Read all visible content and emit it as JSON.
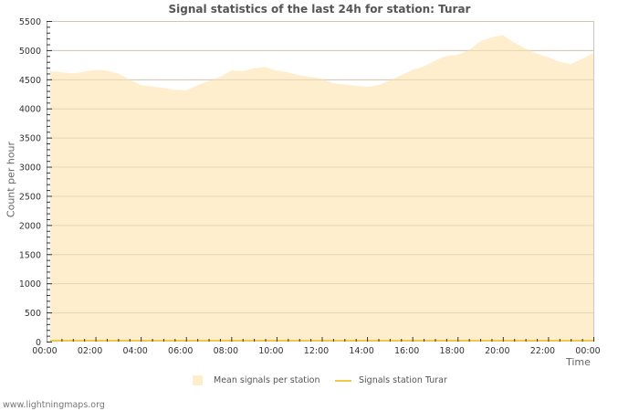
{
  "title": "Signal statistics of the last 24h for station: Turar",
  "footer": "www.lightningmaps.org",
  "colors": {
    "mean_fill": "#feedcb",
    "station_line": "#f0c848",
    "grid": "#c8c8c8",
    "axis": "#999999",
    "text": "#333333"
  },
  "chart_data": {
    "type": "area",
    "title": "Signal statistics of the last 24h for station: Turar",
    "xlabel": "Time",
    "ylabel": "Count per hour",
    "ylim": [
      0,
      5500
    ],
    "yticks": [
      0,
      500,
      1000,
      1500,
      2000,
      2500,
      3000,
      3500,
      4000,
      4500,
      5000,
      5500
    ],
    "xticks": [
      "00:00",
      "02:00",
      "04:00",
      "06:00",
      "08:00",
      "10:00",
      "12:00",
      "14:00",
      "16:00",
      "18:00",
      "20:00",
      "22:00",
      "00:00"
    ],
    "grid": true,
    "legend_position": "bottom",
    "x_hours": [
      0,
      0.5,
      1,
      1.5,
      2,
      2.5,
      3,
      3.5,
      4,
      4.5,
      5,
      5.5,
      6,
      6.5,
      7,
      7.5,
      8,
      8.5,
      9,
      9.5,
      10,
      10.5,
      11,
      11.5,
      12,
      12.5,
      13,
      13.5,
      14,
      14.5,
      15,
      15.5,
      16,
      16.5,
      17,
      17.5,
      18,
      18.5,
      19,
      19.5,
      20,
      20.5,
      21,
      21.5,
      22,
      22.5,
      23,
      23.5,
      24
    ],
    "series": [
      {
        "name": "Mean signals per station",
        "style": "area",
        "values": [
          4640,
          4620,
          4600,
          4630,
          4660,
          4650,
          4600,
          4500,
          4400,
          4380,
          4350,
          4320,
          4310,
          4400,
          4470,
          4540,
          4650,
          4640,
          4690,
          4710,
          4650,
          4620,
          4570,
          4540,
          4510,
          4430,
          4410,
          4390,
          4370,
          4400,
          4480,
          4570,
          4660,
          4720,
          4820,
          4900,
          4920,
          5000,
          5150,
          5220,
          5260,
          5130,
          5030,
          4940,
          4880,
          4800,
          4760,
          4850,
          4950
        ]
      },
      {
        "name": "Signals station Turar",
        "style": "line",
        "values": [
          0,
          0,
          0,
          0,
          0,
          0,
          0,
          0,
          0,
          0,
          0,
          0,
          0,
          0,
          0,
          0,
          0,
          0,
          0,
          0,
          0,
          0,
          0,
          0,
          0,
          0,
          0,
          0,
          0,
          0,
          0,
          0,
          0,
          0,
          0,
          0,
          0,
          0,
          0,
          0,
          0,
          0,
          0,
          0,
          0,
          0,
          0,
          0,
          0
        ]
      }
    ]
  },
  "legend": {
    "items": [
      {
        "label": "Mean signals per station"
      },
      {
        "label": "Signals station Turar"
      }
    ]
  }
}
